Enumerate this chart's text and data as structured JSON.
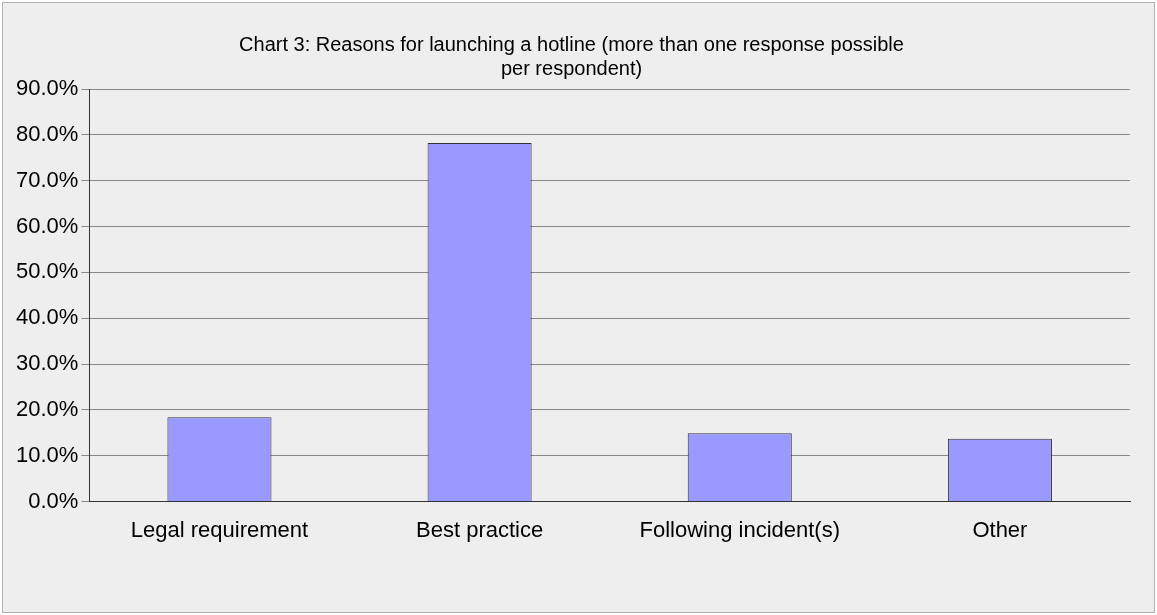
{
  "chart_data": {
    "type": "bar",
    "title": [
      "Chart 3: Reasons for launching a hotline (more than one response possible",
      "per respondent)"
    ],
    "categories": [
      "Legal requirement",
      "Best practice",
      "Following incident(s)",
      "Other"
    ],
    "values": [
      18.4,
      78.2,
      14.9,
      13.7
    ],
    "color": "#9999ff",
    "ylim": [
      0,
      90
    ],
    "yticks": [
      {
        "value": 0,
        "label": "0.0%"
      },
      {
        "value": 10,
        "label": "10.0%"
      },
      {
        "value": 20,
        "label": "20.0%"
      },
      {
        "value": 30,
        "label": "30.0%"
      },
      {
        "value": 40,
        "label": "40.0%"
      },
      {
        "value": 50,
        "label": "50.0%"
      },
      {
        "value": 60,
        "label": "60.0%"
      },
      {
        "value": 70,
        "label": "70.0%"
      },
      {
        "value": 80,
        "label": "80.0%"
      },
      {
        "value": 90,
        "label": "90.0%"
      }
    ],
    "grid": "y",
    "legend": false
  }
}
